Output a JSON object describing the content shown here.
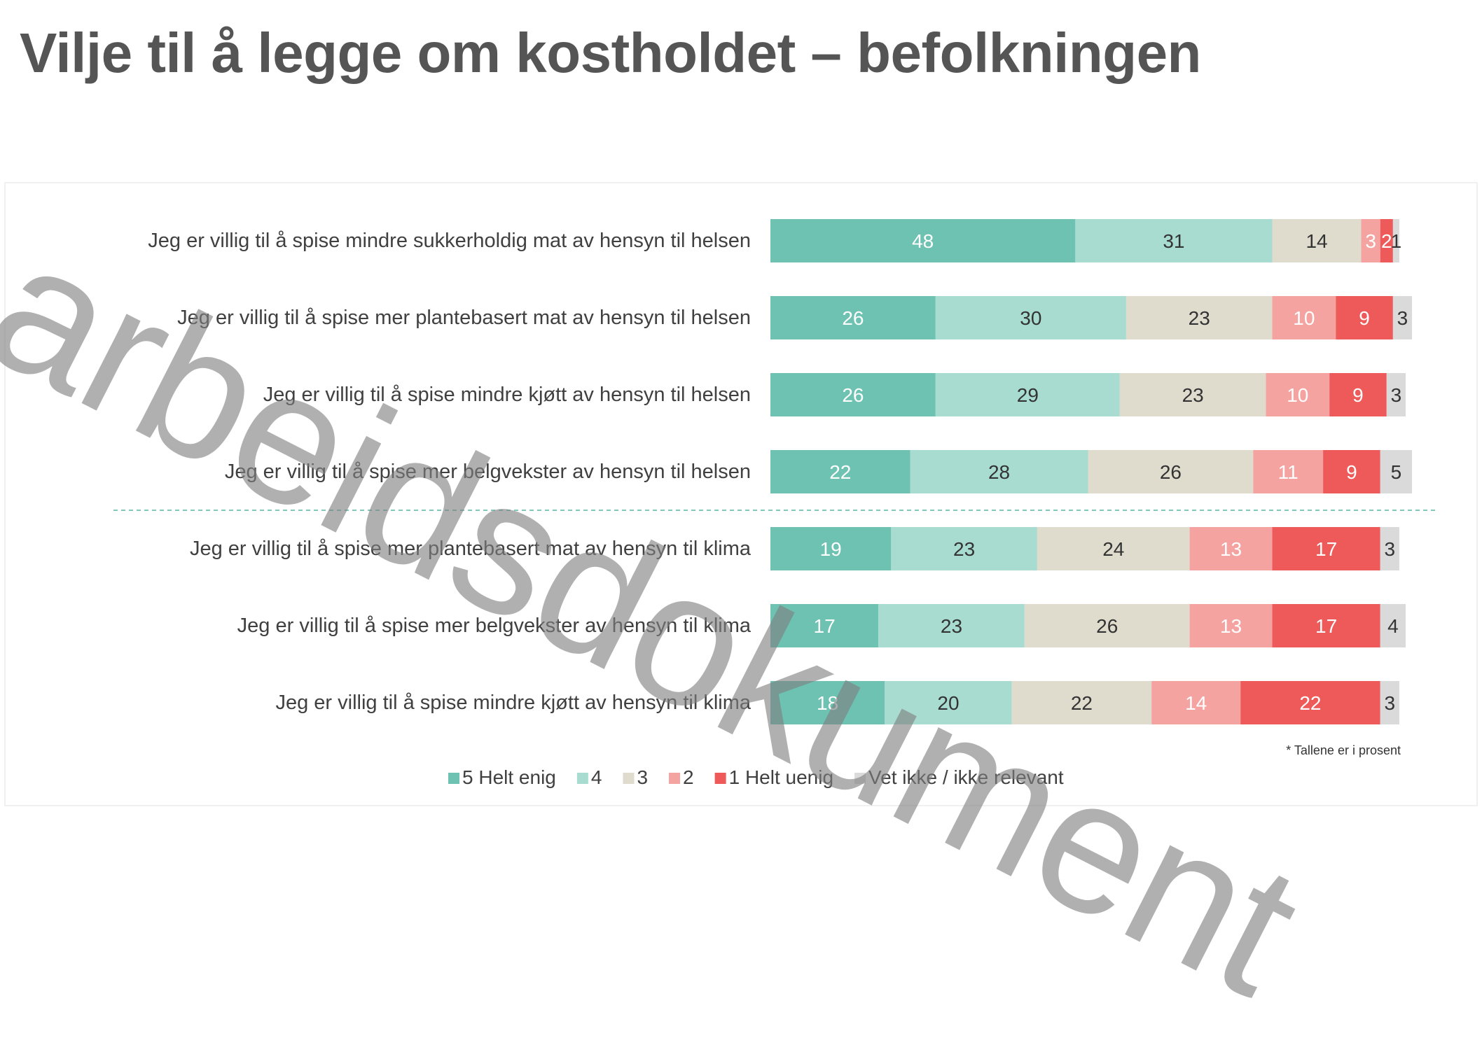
{
  "title": "Vilje til å legge om kostholdet – befolkningen",
  "note": "* Tallene er i prosent",
  "watermark": "arbeidsdokument",
  "colors": {
    "5": "#6dc2b2",
    "4": "#a8dcd0",
    "3": "#dfdbcd",
    "2": "#f5a3a0",
    "1": "#ee5a5a",
    "dk": "#dadada",
    "divider": "#7fc9b9"
  },
  "chart_data": {
    "type": "bar",
    "orientation": "horizontal-stacked",
    "unit": "percent",
    "categories": [
      "Jeg er villig til å spise mindre sukkerholdig mat av hensyn til helsen",
      "Jeg er villig til å spise mer plantebasert mat av hensyn til helsen",
      "Jeg er villig til å spise mindre kjøtt av hensyn til helsen",
      "Jeg er villig til å spise mer belgvekster av hensyn til helsen",
      "Jeg er villig til å spise mer plantebasert mat av hensyn til klima",
      "Jeg er villig til å spise mer belgvekster av hensyn til klima",
      "Jeg er villig til å spise mindre kjøtt av hensyn til klima"
    ],
    "series": [
      {
        "name": "5 Helt enig",
        "key": "5",
        "values": [
          48,
          26,
          26,
          22,
          19,
          17,
          18
        ]
      },
      {
        "name": "4",
        "key": "4",
        "values": [
          31,
          30,
          29,
          28,
          23,
          23,
          20
        ]
      },
      {
        "name": "3",
        "key": "3",
        "values": [
          14,
          23,
          23,
          26,
          24,
          26,
          22
        ]
      },
      {
        "name": "2",
        "key": "2",
        "values": [
          3,
          10,
          10,
          11,
          13,
          13,
          14
        ]
      },
      {
        "name": "1 Helt uenig",
        "key": "1",
        "values": [
          2,
          9,
          9,
          9,
          17,
          17,
          22
        ]
      },
      {
        "name": "Vet ikke / ikke relevant",
        "key": "dk",
        "values": [
          1,
          3,
          3,
          5,
          3,
          4,
          3
        ]
      }
    ],
    "divider_after_index": 3,
    "legend_position": "bottom"
  }
}
